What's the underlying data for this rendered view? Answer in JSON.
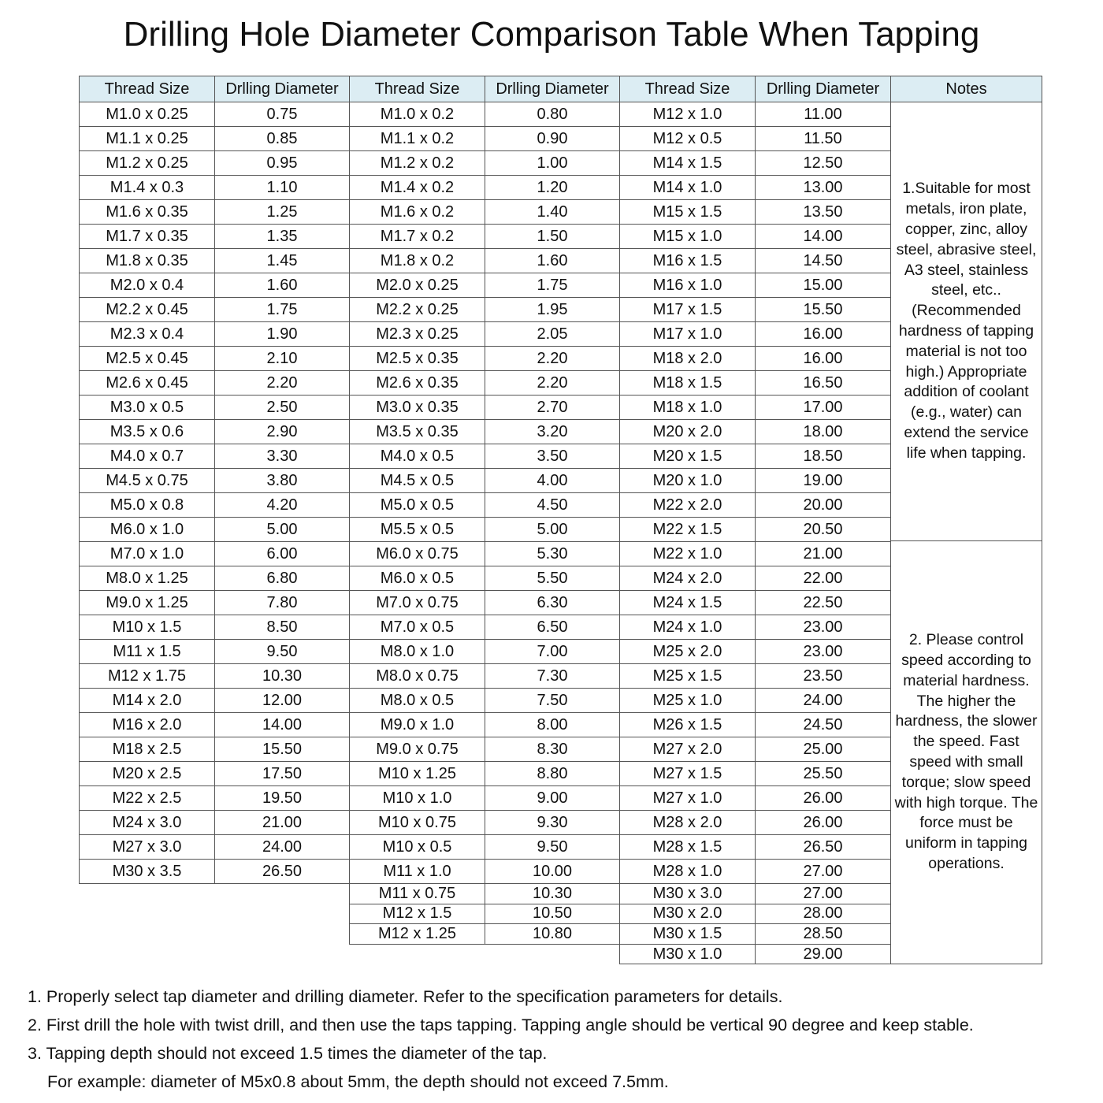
{
  "title": "Drilling Hole Diameter Comparison Table When Tapping",
  "headers": [
    "Thread Size",
    "Drlling Diameter",
    "Thread Size",
    "Drlling Diameter",
    "Thread Size",
    "Drlling Diameter",
    "Notes"
  ],
  "header_bg": "#dcedf3",
  "groups": [
    [
      [
        "M1.0 x 0.25",
        "0.75"
      ],
      [
        "M1.1 x 0.25",
        "0.85"
      ],
      [
        "M1.2 x 0.25",
        "0.95"
      ],
      [
        "M1.4 x 0.3",
        "1.10"
      ],
      [
        "M1.6 x 0.35",
        "1.25"
      ],
      [
        "M1.7 x 0.35",
        "1.35"
      ],
      [
        "M1.8 x 0.35",
        "1.45"
      ],
      [
        "M2.0 x 0.4",
        "1.60"
      ],
      [
        "M2.2 x 0.45",
        "1.75"
      ],
      [
        "M2.3 x 0.4",
        "1.90"
      ],
      [
        "M2.5 x 0.45",
        "2.10"
      ],
      [
        "M2.6 x 0.45",
        "2.20"
      ],
      [
        "M3.0 x 0.5",
        "2.50"
      ],
      [
        "M3.5 x 0.6",
        "2.90"
      ],
      [
        "M4.0 x 0.7",
        "3.30"
      ],
      [
        "M4.5 x 0.75",
        "3.80"
      ],
      [
        "M5.0 x 0.8",
        "4.20"
      ],
      [
        "M6.0 x 1.0",
        "5.00"
      ],
      [
        "M7.0 x 1.0",
        "6.00"
      ],
      [
        "M8.0 x 1.25",
        "6.80"
      ],
      [
        "M9.0 x 1.25",
        "7.80"
      ],
      [
        "M10 x 1.5",
        "8.50"
      ],
      [
        "M11 x 1.5",
        "9.50"
      ],
      [
        "M12 x 1.75",
        "10.30"
      ],
      [
        "M14 x 2.0",
        "12.00"
      ],
      [
        "M16 x 2.0",
        "14.00"
      ],
      [
        "M18 x 2.5",
        "15.50"
      ],
      [
        "M20 x 2.5",
        "17.50"
      ],
      [
        "M22 x 2.5",
        "19.50"
      ],
      [
        "M24 x 3.0",
        "21.00"
      ],
      [
        "M27 x 3.0",
        "24.00"
      ],
      [
        "M30 x 3.5",
        "26.50"
      ]
    ],
    [
      [
        "M1.0 x 0.2",
        "0.80"
      ],
      [
        "M1.1 x 0.2",
        "0.90"
      ],
      [
        "M1.2 x 0.2",
        "1.00"
      ],
      [
        "M1.4 x 0.2",
        "1.20"
      ],
      [
        "M1.6 x 0.2",
        "1.40"
      ],
      [
        "M1.7 x 0.2",
        "1.50"
      ],
      [
        "M1.8 x 0.2",
        "1.60"
      ],
      [
        "M2.0 x 0.25",
        "1.75"
      ],
      [
        "M2.2 x 0.25",
        "1.95"
      ],
      [
        "M2.3 x 0.25",
        "2.05"
      ],
      [
        "M2.5 x 0.35",
        "2.20"
      ],
      [
        "M2.6 x 0.35",
        "2.20"
      ],
      [
        "M3.0 x 0.35",
        "2.70"
      ],
      [
        "M3.5 x 0.35",
        "3.20"
      ],
      [
        "M4.0 x 0.5",
        "3.50"
      ],
      [
        "M4.5 x 0.5",
        "4.00"
      ],
      [
        "M5.0 x 0.5",
        "4.50"
      ],
      [
        "M5.5 x 0.5",
        "5.00"
      ],
      [
        "M6.0 x 0.75",
        "5.30"
      ],
      [
        "M6.0 x 0.5",
        "5.50"
      ],
      [
        "M7.0 x 0.75",
        "6.30"
      ],
      [
        "M7.0 x 0.5",
        "6.50"
      ],
      [
        "M8.0 x 1.0",
        "7.00"
      ],
      [
        "M8.0 x 0.75",
        "7.30"
      ],
      [
        "M8.0 x 0.5",
        "7.50"
      ],
      [
        "M9.0 x 1.0",
        "8.00"
      ],
      [
        "M9.0 x 0.75",
        "8.30"
      ],
      [
        "M10 x 1.25",
        "8.80"
      ],
      [
        "M10 x 1.0",
        "9.00"
      ],
      [
        "M10 x 0.75",
        "9.30"
      ],
      [
        "M10 x 0.5",
        "9.50"
      ],
      [
        "M11 x 1.0",
        "10.00"
      ],
      [
        "M11 x 0.75",
        "10.30"
      ],
      [
        "M12 x 1.5",
        "10.50"
      ],
      [
        "M12 x 1.25",
        "10.80"
      ]
    ],
    [
      [
        "M12 x 1.0",
        "11.00"
      ],
      [
        "M12 x 0.5",
        "11.50"
      ],
      [
        "M14 x 1.5",
        "12.50"
      ],
      [
        "M14 x 1.0",
        "13.00"
      ],
      [
        "M15 x 1.5",
        "13.50"
      ],
      [
        "M15 x 1.0",
        "14.00"
      ],
      [
        "M16 x 1.5",
        "14.50"
      ],
      [
        "M16 x 1.0",
        "15.00"
      ],
      [
        "M17 x 1.5",
        "15.50"
      ],
      [
        "M17 x 1.0",
        "16.00"
      ],
      [
        "M18 x 2.0",
        "16.00"
      ],
      [
        "M18 x 1.5",
        "16.50"
      ],
      [
        "M18 x 1.0",
        "17.00"
      ],
      [
        "M20 x 2.0",
        "18.00"
      ],
      [
        "M20 x 1.5",
        "18.50"
      ],
      [
        "M20 x 1.0",
        "19.00"
      ],
      [
        "M22 x 2.0",
        "20.00"
      ],
      [
        "M22 x 1.5",
        "20.50"
      ],
      [
        "M22 x 1.0",
        "21.00"
      ],
      [
        "M24 x 2.0",
        "22.00"
      ],
      [
        "M24 x 1.5",
        "22.50"
      ],
      [
        "M24 x 1.0",
        "23.00"
      ],
      [
        "M25 x 2.0",
        "23.00"
      ],
      [
        "M25 x 1.5",
        "23.50"
      ],
      [
        "M25 x 1.0",
        "24.00"
      ],
      [
        "M26 x 1.5",
        "24.50"
      ],
      [
        "M27 x 2.0",
        "25.00"
      ],
      [
        "M27 x 1.5",
        "25.50"
      ],
      [
        "M27 x 1.0",
        "26.00"
      ],
      [
        "M28 x 2.0",
        "26.00"
      ],
      [
        "M28 x 1.5",
        "26.50"
      ],
      [
        "M28 x 1.0",
        "27.00"
      ],
      [
        "M30 x 3.0",
        "27.00"
      ],
      [
        "M30 x 2.0",
        "28.00"
      ],
      [
        "M30 x 1.5",
        "28.50"
      ],
      [
        "M30 x 1.0",
        "29.00"
      ]
    ]
  ],
  "notes": [
    "1.Suitable for most metals, iron plate, copper, zinc, alloy steel, abrasive steel, A3 steel, stainless steel, etc..(Recommended hardness of tapping material is not too high.) Appropriate addition of coolant (e.g., water) can extend the service life when tapping.",
    "2. Please control speed according to material hardness. The higher the hardness, the slower the speed. Fast speed with small torque; slow speed with high torque. The force must be uniform in tapping operations."
  ],
  "footnotes": [
    "1. Properly select tap diameter and drilling diameter. Refer to the specification parameters for details.",
    "2. First drill the hole with twist drill, and then use the taps tapping. Tapping angle should be vertical 90 degree and keep stable.",
    "3. Tapping depth should not exceed 1.5 times the diameter of the tap.",
    "For example: diameter of M5x0.8 about 5mm, the depth should not exceed 7.5mm."
  ]
}
